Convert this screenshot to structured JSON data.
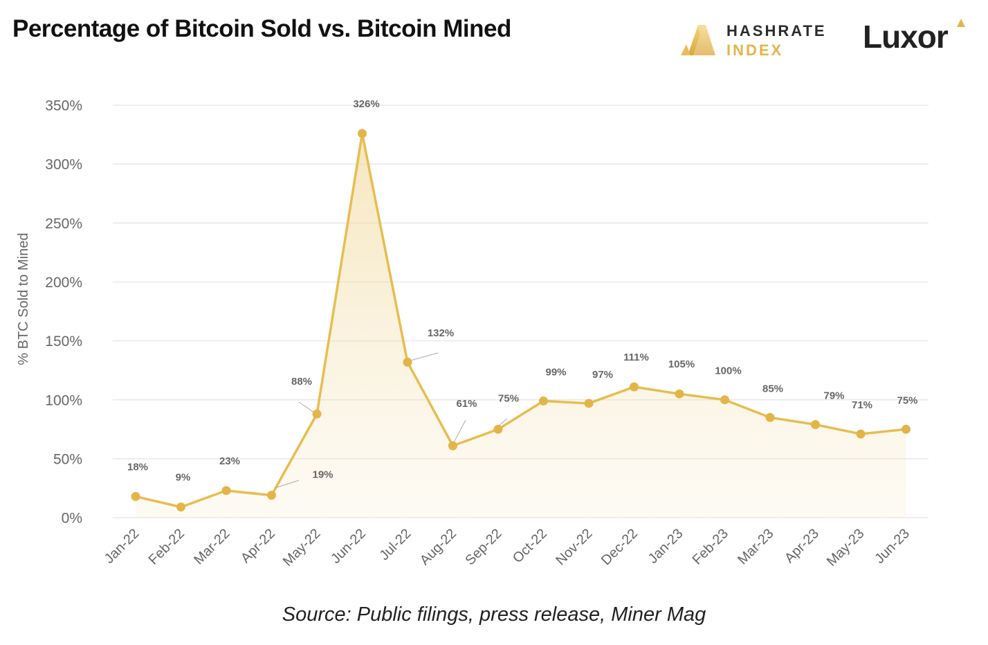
{
  "header": {
    "title": "Percentage of Bitcoin Sold vs. Bitcoin Mined",
    "logo_primary_line1": "HASHRATE",
    "logo_primary_line2": "INDEX",
    "logo_secondary": "Luxor"
  },
  "footer": {
    "source": "Source: Public filings, press release, Miner Mag"
  },
  "colors": {
    "line": "#e8bd4f",
    "marker": "#e3b548",
    "grid": "#e3e3e3",
    "tick_text": "#666666",
    "data_label": "#666666"
  },
  "chart_data": {
    "type": "line",
    "title": "Percentage of Bitcoin Sold vs. Bitcoin Mined",
    "xlabel": "",
    "ylabel": "% BTC Sold to Mined",
    "ylim": [
      0,
      350
    ],
    "yticks": [
      0,
      50,
      100,
      150,
      200,
      250,
      300,
      350
    ],
    "ytick_labels": [
      "0%",
      "50%",
      "100%",
      "150%",
      "200%",
      "250%",
      "300%",
      "350%"
    ],
    "grid": true,
    "area_fill": true,
    "categories": [
      "Jan-22",
      "Feb-22",
      "Mar-22",
      "Apr-22",
      "May-22",
      "Jun-22",
      "Jul-22",
      "Aug-22",
      "Sep-22",
      "Oct-22",
      "Nov-22",
      "Dec-22",
      "Jan-23",
      "Feb-23",
      "Mar-23",
      "Apr-23",
      "May-23",
      "Jun-23"
    ],
    "values": [
      18,
      9,
      23,
      19,
      88,
      326,
      132,
      61,
      75,
      99,
      97,
      111,
      105,
      100,
      85,
      79,
      71,
      75
    ],
    "data_labels": [
      "18%",
      "9%",
      "23%",
      "19%",
      "88%",
      "326%",
      "132%",
      "61%",
      "75%",
      "99%",
      "97%",
      "111%",
      "105%",
      "100%",
      "85%",
      "79%",
      "71%",
      "75%"
    ]
  }
}
